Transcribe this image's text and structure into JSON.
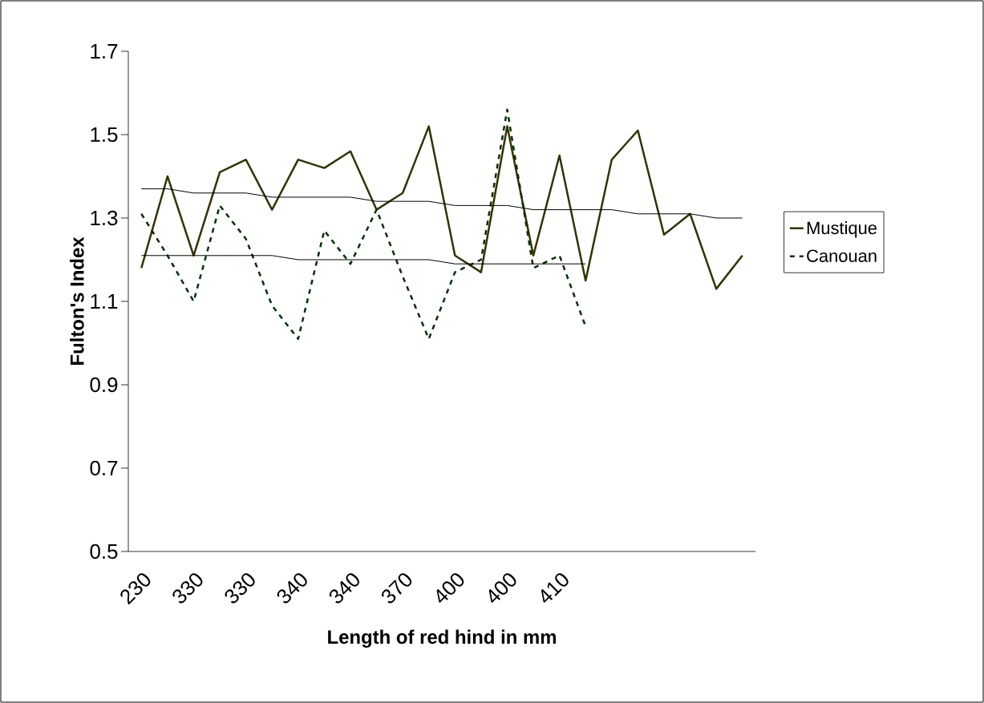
{
  "chart_data": {
    "type": "line",
    "xlabel": "Length of red hind in mm",
    "ylabel": "Fulton's Index",
    "categories": [
      "230",
      null,
      "330",
      null,
      "330",
      null,
      "340",
      null,
      "340",
      null,
      "370",
      null,
      "400",
      null,
      "400",
      null,
      "410",
      null,
      null,
      null,
      null,
      null,
      null,
      null
    ],
    "series": [
      {
        "name": "Mustique",
        "color": "#333300",
        "line_style": "solid",
        "values": [
          1.18,
          1.4,
          1.21,
          1.41,
          1.44,
          1.32,
          1.44,
          1.42,
          1.46,
          1.32,
          1.36,
          1.52,
          1.21,
          1.17,
          1.52,
          1.21,
          1.45,
          1.15,
          1.44,
          1.51,
          1.26,
          1.31,
          1.13,
          1.21
        ]
      },
      {
        "name": "Canouan",
        "color": "#003300",
        "line_style": "dashed",
        "values": [
          1.31,
          1.21,
          1.1,
          1.33,
          1.25,
          1.09,
          1.01,
          1.27,
          1.19,
          1.32,
          1.16,
          1.01,
          1.17,
          1.2,
          1.56,
          1.18,
          1.21,
          1.04,
          null,
          null,
          null,
          null,
          null,
          null
        ]
      },
      {
        "type": "line",
        "color": "#000000",
        "line_style": "solid",
        "values": [
          1.37,
          1.37,
          1.36,
          1.36,
          1.36,
          1.35,
          1.35,
          1.35,
          1.35,
          1.34,
          1.34,
          1.34,
          1.33,
          1.33,
          1.33,
          1.32,
          1.32,
          1.32,
          1.32,
          1.31,
          1.31,
          1.31,
          1.3,
          1.3
        ]
      },
      {
        "type": "line",
        "color": "#000000",
        "line_style": "solid",
        "values": [
          1.21,
          1.21,
          1.21,
          1.21,
          1.21,
          1.21,
          1.2,
          1.2,
          1.2,
          1.2,
          1.2,
          1.2,
          1.19,
          1.19,
          1.19,
          1.19,
          1.19,
          1.19,
          null,
          null,
          null,
          null,
          null,
          null
        ]
      }
    ],
    "ylim": [
      0.5,
      1.7
    ],
    "yticks": [
      0.5,
      0.7,
      0.9,
      1.1,
      1.3,
      1.5,
      1.7
    ],
    "grid": false,
    "legend": "right",
    "marker": "none"
  }
}
